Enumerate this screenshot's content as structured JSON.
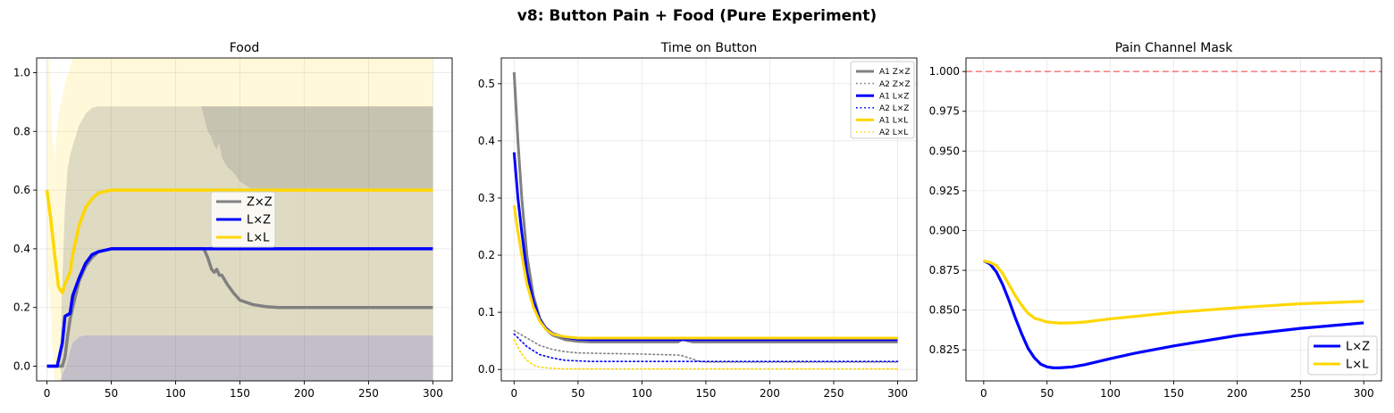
{
  "suptitle": "v8: Button Pain + Food (Pure Experiment)",
  "chart_data": [
    {
      "type": "line",
      "title": "Food",
      "xlabel": "",
      "ylabel": "",
      "xlim": [
        -8,
        315
      ],
      "ylim": [
        -0.05,
        1.05
      ],
      "xticks": [
        0,
        50,
        100,
        150,
        200,
        250,
        300
      ],
      "yticks": [
        0.0,
        0.2,
        0.4,
        0.6,
        0.8,
        1.0
      ],
      "ytick_labels": [
        "0.0",
        "0.2",
        "0.4",
        "0.6",
        "0.8",
        "1.0"
      ],
      "grid": true,
      "legend_position": "center",
      "series": [
        {
          "name": "Z×Z",
          "color": "#808080",
          "style": "solid",
          "width": 3.5,
          "in_legend": true,
          "x": [
            0,
            5,
            10,
            12,
            14,
            16,
            18,
            20,
            25,
            30,
            35,
            40,
            50,
            60,
            80,
            100,
            110,
            118,
            122,
            125,
            128,
            130,
            132,
            134,
            136,
            140,
            145,
            150,
            160,
            170,
            180,
            200,
            250,
            300
          ],
          "y": [
            0,
            0,
            0,
            0,
            0.03,
            0.1,
            0.16,
            0.2,
            0.29,
            0.34,
            0.37,
            0.39,
            0.4,
            0.4,
            0.4,
            0.4,
            0.4,
            0.4,
            0.4,
            0.37,
            0.33,
            0.32,
            0.33,
            0.31,
            0.31,
            0.28,
            0.25,
            0.225,
            0.21,
            0.203,
            0.2,
            0.2,
            0.2,
            0.2
          ]
        },
        {
          "name": "L×Z",
          "color": "#0000ff",
          "style": "solid",
          "width": 3.5,
          "in_legend": true,
          "x": [
            0,
            5,
            8,
            10,
            12,
            14,
            16,
            18,
            20,
            25,
            30,
            35,
            40,
            50,
            60,
            80,
            100,
            150,
            200,
            250,
            300
          ],
          "y": [
            0,
            0,
            0,
            0.04,
            0.08,
            0.17,
            0.175,
            0.18,
            0.24,
            0.3,
            0.35,
            0.38,
            0.39,
            0.4,
            0.4,
            0.4,
            0.4,
            0.4,
            0.4,
            0.4,
            0.4
          ]
        },
        {
          "name": "L×L",
          "color": "#ffd700",
          "style": "solid",
          "width": 3.5,
          "in_legend": true,
          "x": [
            0,
            3,
            6,
            9,
            12,
            14,
            16,
            18,
            20,
            22,
            25,
            30,
            35,
            40,
            50,
            60,
            80,
            100,
            150,
            200,
            250,
            300
          ],
          "y": [
            0.6,
            0.5,
            0.38,
            0.27,
            0.25,
            0.28,
            0.3,
            0.32,
            0.38,
            0.42,
            0.48,
            0.54,
            0.57,
            0.59,
            0.6,
            0.6,
            0.6,
            0.6,
            0.6,
            0.6,
            0.6,
            0.6
          ]
        }
      ],
      "bands": [
        {
          "color": "#ffd700",
          "opacity": 0.15,
          "x": [
            0,
            2,
            4,
            6,
            8,
            10,
            12,
            15,
            20,
            25,
            30,
            40,
            60,
            100,
            200,
            300
          ],
          "upper": [
            1.05,
            1.05,
            0.8,
            0.7,
            0.82,
            0.88,
            0.92,
            0.98,
            1.05,
            1.05,
            1.05,
            1.05,
            1.05,
            1.05,
            1.05,
            1.05
          ],
          "lower": [
            0.18,
            0.3,
            0.07,
            -0.05,
            -0.05,
            -0.05,
            -0.05,
            -0.05,
            -0.05,
            -0.05,
            -0.05,
            -0.05,
            -0.05,
            -0.05,
            -0.05,
            -0.05
          ]
        },
        {
          "color": "#808080",
          "opacity": 0.25,
          "x": [
            10,
            12,
            14,
            16,
            18,
            20,
            25,
            30,
            35,
            40,
            50,
            60,
            80,
            100,
            120,
            125,
            128,
            130,
            132,
            134,
            136,
            140,
            150,
            160,
            170,
            180,
            200,
            250,
            300
          ],
          "upper": [
            0,
            0.3,
            0.54,
            0.67,
            0.72,
            0.75,
            0.82,
            0.86,
            0.88,
            0.885,
            0.885,
            0.885,
            0.885,
            0.885,
            0.885,
            0.885,
            0.885,
            0.885,
            0.885,
            0.885,
            0.885,
            0.885,
            0.885,
            0.885,
            0.885,
            0.885,
            0.885,
            0.885,
            0.885
          ],
          "lower": [
            0,
            -0.05,
            -0.05,
            -0.05,
            -0.05,
            -0.05,
            -0.05,
            -0.05,
            -0.05,
            -0.05,
            -0.05,
            -0.05,
            -0.05,
            -0.05,
            -0.05,
            -0.05,
            -0.05,
            -0.05,
            -0.05,
            -0.05,
            -0.05,
            -0.05,
            -0.05,
            -0.05,
            -0.05,
            -0.05,
            -0.05,
            -0.05,
            -0.05
          ]
        },
        {
          "color": "#808080",
          "opacity": 0.25,
          "x": [
            120,
            125,
            128,
            130,
            132,
            134,
            136,
            140,
            145,
            150,
            160,
            170,
            180,
            200,
            250,
            300
          ],
          "upper": [
            0.885,
            0.885,
            0.885,
            0.885,
            0.885,
            0.885,
            0.885,
            0.885,
            0.885,
            0.885,
            0.885,
            0.885,
            0.885,
            0.885,
            0.885,
            0.885
          ],
          "lower": [
            0.885,
            0.8,
            0.78,
            0.75,
            0.74,
            0.76,
            0.71,
            0.68,
            0.66,
            0.63,
            0.6,
            0.6,
            0.6,
            0.6,
            0.6,
            0.6
          ]
        },
        {
          "color": "#0000ff",
          "opacity": 0.12,
          "x": [
            10,
            15,
            18,
            20,
            25,
            30,
            40,
            60,
            100,
            200,
            300
          ],
          "upper": [
            -0.05,
            0.0,
            0.05,
            0.08,
            0.1,
            0.105,
            0.105,
            0.105,
            0.105,
            0.105,
            0.105
          ],
          "lower": [
            -0.05,
            -0.05,
            -0.05,
            -0.05,
            -0.05,
            -0.05,
            -0.05,
            -0.05,
            -0.05,
            -0.05,
            -0.05
          ]
        }
      ]
    },
    {
      "type": "line",
      "title": "Time on Button",
      "xlabel": "",
      "ylabel": "",
      "xlim": [
        -10,
        315
      ],
      "ylim": [
        -0.02,
        0.545
      ],
      "xticks": [
        0,
        50,
        100,
        150,
        200,
        250,
        300
      ],
      "yticks": [
        0.0,
        0.1,
        0.2,
        0.3,
        0.4,
        0.5
      ],
      "ytick_labels": [
        "0.0",
        "0.1",
        "0.2",
        "0.3",
        "0.4",
        "0.5"
      ],
      "grid": true,
      "legend_position": "top-right",
      "series": [
        {
          "name": "A1 Z×Z",
          "color": "#808080",
          "style": "solid",
          "width": 3,
          "in_legend": true,
          "x": [
            0,
            3,
            6,
            10,
            15,
            20,
            25,
            30,
            40,
            50,
            60,
            80,
            100,
            120,
            128,
            132,
            136,
            140,
            150,
            200,
            250,
            300
          ],
          "y": [
            0.52,
            0.4,
            0.3,
            0.2,
            0.13,
            0.09,
            0.07,
            0.06,
            0.052,
            0.049,
            0.048,
            0.048,
            0.048,
            0.048,
            0.048,
            0.053,
            0.05,
            0.048,
            0.048,
            0.048,
            0.048,
            0.048
          ]
        },
        {
          "name": "A2 Z×Z",
          "color": "#808080",
          "style": "dotted",
          "width": 1.6,
          "in_legend": true,
          "x": [
            0,
            10,
            20,
            30,
            40,
            50,
            70,
            100,
            130,
            140,
            145,
            150,
            200,
            250,
            300
          ],
          "y": [
            0.068,
            0.055,
            0.042,
            0.035,
            0.031,
            0.029,
            0.028,
            0.027,
            0.025,
            0.018,
            0.014,
            0.013,
            0.013,
            0.013,
            0.013
          ]
        },
        {
          "name": "A1 L×Z",
          "color": "#0000ff",
          "style": "solid",
          "width": 3,
          "in_legend": true,
          "x": [
            0,
            3,
            6,
            10,
            15,
            20,
            25,
            30,
            40,
            50,
            60,
            80,
            100,
            150,
            200,
            250,
            300
          ],
          "y": [
            0.38,
            0.3,
            0.24,
            0.17,
            0.12,
            0.088,
            0.072,
            0.063,
            0.056,
            0.053,
            0.052,
            0.052,
            0.052,
            0.052,
            0.052,
            0.052,
            0.052
          ]
        },
        {
          "name": "A2 L×Z",
          "color": "#0000ff",
          "style": "dotted",
          "width": 1.6,
          "in_legend": true,
          "x": [
            0,
            10,
            20,
            30,
            40,
            60,
            100,
            130,
            140,
            145,
            150,
            200,
            250,
            300
          ],
          "y": [
            0.062,
            0.04,
            0.026,
            0.02,
            0.016,
            0.014,
            0.014,
            0.014,
            0.014,
            0.014,
            0.014,
            0.014,
            0.014,
            0.014
          ]
        },
        {
          "name": "A1 L×L",
          "color": "#ffd700",
          "style": "solid",
          "width": 3,
          "in_legend": true,
          "x": [
            0,
            3,
            6,
            10,
            15,
            20,
            25,
            30,
            40,
            50,
            60,
            80,
            100,
            150,
            200,
            250,
            300
          ],
          "y": [
            0.287,
            0.24,
            0.2,
            0.15,
            0.11,
            0.085,
            0.07,
            0.062,
            0.057,
            0.055,
            0.055,
            0.055,
            0.055,
            0.055,
            0.055,
            0.055,
            0.055
          ]
        },
        {
          "name": "A2 L×L",
          "color": "#ffd700",
          "style": "dotted",
          "width": 1.6,
          "in_legend": true,
          "x": [
            0,
            5,
            10,
            15,
            20,
            30,
            40,
            60,
            100,
            200,
            300
          ],
          "y": [
            0.052,
            0.03,
            0.016,
            0.008,
            0.004,
            0.002,
            0.001,
            0.001,
            0.001,
            0.001,
            0.001
          ]
        }
      ]
    },
    {
      "type": "line",
      "title": "Pain Channel Mask",
      "xlabel": "",
      "ylabel": "",
      "xlim": [
        -14,
        314
      ],
      "ylim": [
        0.8055,
        1.0085
      ],
      "xticks": [
        0,
        50,
        100,
        150,
        200,
        250,
        300
      ],
      "yticks": [
        0.825,
        0.85,
        0.875,
        0.9,
        0.925,
        0.95,
        0.975,
        1.0
      ],
      "ytick_labels": [
        "0.825",
        "0.850",
        "0.875",
        "0.900",
        "0.925",
        "0.950",
        "0.975",
        "1.000"
      ],
      "grid": true,
      "legend_position": "bottom-right",
      "series": [
        {
          "name": "L×Z",
          "color": "#0000ff",
          "style": "solid",
          "width": 3.2,
          "in_legend": true,
          "x": [
            0,
            5,
            10,
            15,
            20,
            25,
            30,
            35,
            40,
            45,
            50,
            55,
            60,
            70,
            80,
            100,
            120,
            150,
            200,
            250,
            300
          ],
          "y": [
            0.881,
            0.879,
            0.874,
            0.866,
            0.856,
            0.845,
            0.835,
            0.826,
            0.82,
            0.816,
            0.8143,
            0.8137,
            0.8137,
            0.8143,
            0.8157,
            0.8195,
            0.823,
            0.8275,
            0.834,
            0.8385,
            0.842
          ]
        },
        {
          "name": "L×L",
          "color": "#ffd700",
          "style": "solid",
          "width": 3.2,
          "in_legend": true,
          "x": [
            0,
            5,
            10,
            15,
            20,
            25,
            30,
            35,
            40,
            50,
            60,
            70,
            80,
            100,
            150,
            200,
            250,
            300
          ],
          "y": [
            0.881,
            0.88,
            0.878,
            0.873,
            0.866,
            0.859,
            0.853,
            0.848,
            0.845,
            0.8425,
            0.8418,
            0.842,
            0.8425,
            0.8445,
            0.8485,
            0.8515,
            0.854,
            0.8555
          ]
        },
        {
          "name": "ref 1.0",
          "color": "#ff0000",
          "style": "dashed",
          "width": 1.4,
          "opacity": 0.55,
          "in_legend": false,
          "x": [
            -14,
            314
          ],
          "y": [
            1.0,
            1.0
          ]
        }
      ]
    }
  ]
}
